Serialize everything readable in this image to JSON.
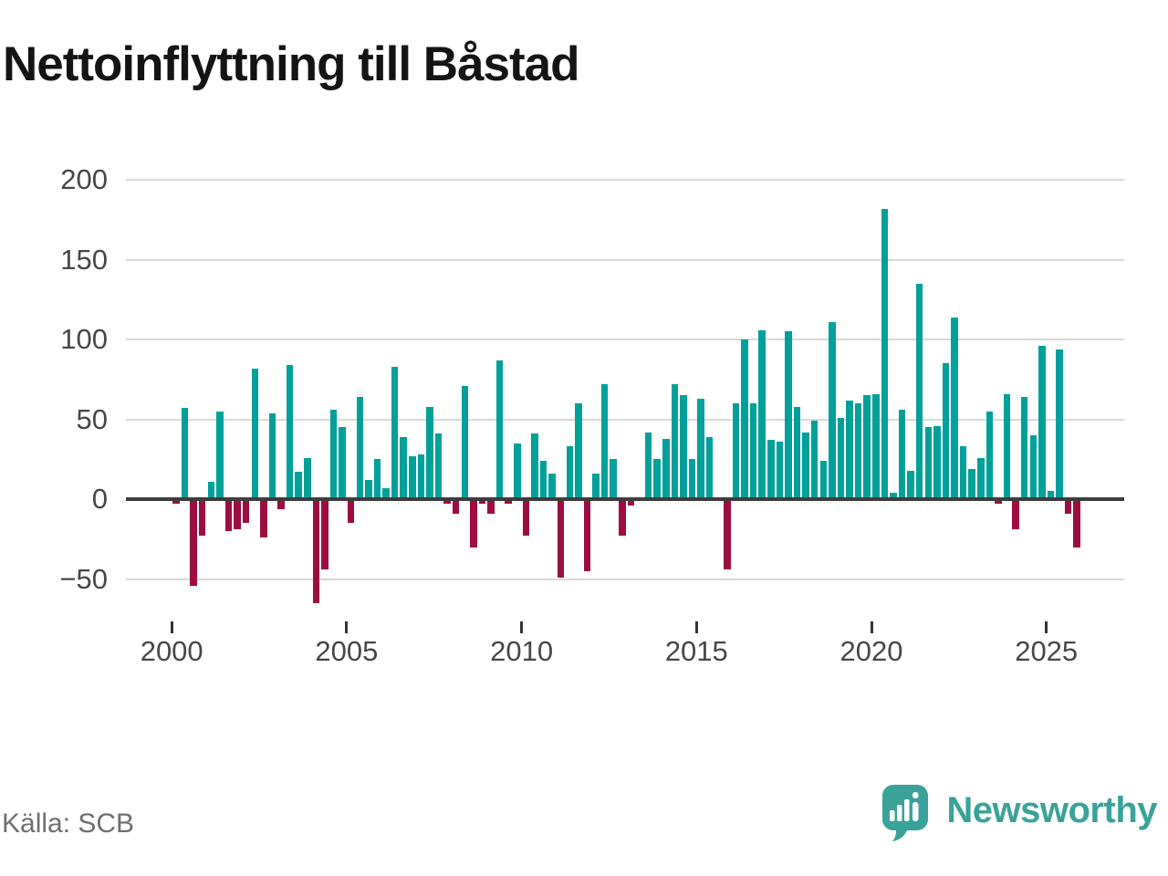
{
  "title": "Nettoinflyttning till Båstad",
  "footer": {
    "source": "Källa: SCB",
    "brand": "Newsworthy"
  },
  "colors": {
    "positive_bar": "#01a09a",
    "negative_bar": "#9d0d41",
    "gridline": "#d9d9d9",
    "zero_line": "#3d3d3d",
    "axis_text": "#474747",
    "title_text": "#141414",
    "source_text": "#6f6f6f",
    "brand_teal": "#3aa29b"
  },
  "chart_data": {
    "type": "bar",
    "title": "Nettoinflyttning till Båstad",
    "xlabel": "",
    "ylabel": "",
    "frequency": "quarterly",
    "start_year": 2000,
    "end_year": 2025,
    "grid": true,
    "legend": false,
    "ylim": [
      -75,
      215
    ],
    "y_ticks": [
      200,
      150,
      100,
      50,
      0,
      -50
    ],
    "y_tick_labels": [
      "200",
      "150",
      "100",
      "50",
      "0",
      "−50"
    ],
    "x_ticks_years": [
      2000,
      2005,
      2010,
      2015,
      2020,
      2025
    ],
    "x_tick_labels": [
      "2000",
      "2005",
      "2010",
      "2015",
      "2020",
      "2025"
    ],
    "values": [
      -3,
      57,
      -54,
      -23,
      11,
      55,
      -20,
      -19,
      -15,
      82,
      -24,
      54,
      -6,
      84,
      17,
      26,
      -65,
      -44,
      56,
      45,
      -15,
      64,
      12,
      25,
      7,
      83,
      39,
      27,
      28,
      58,
      41,
      -3,
      -9,
      71,
      -30,
      -3,
      -9,
      87,
      -3,
      35,
      -23,
      41,
      24,
      16,
      -49,
      33,
      60,
      -45,
      16,
      72,
      25,
      -23,
      -4,
      0,
      42,
      25,
      38,
      72,
      65,
      25,
      63,
      39,
      0,
      -44,
      60,
      100,
      60,
      106,
      37,
      36,
      105,
      58,
      42,
      49,
      24,
      111,
      51,
      62,
      60,
      65,
      66,
      182,
      4,
      56,
      18,
      135,
      45,
      46,
      85,
      114,
      33,
      19,
      26,
      55,
      -3,
      66,
      -19,
      64,
      40,
      96,
      5,
      94,
      -9,
      -30
    ]
  }
}
